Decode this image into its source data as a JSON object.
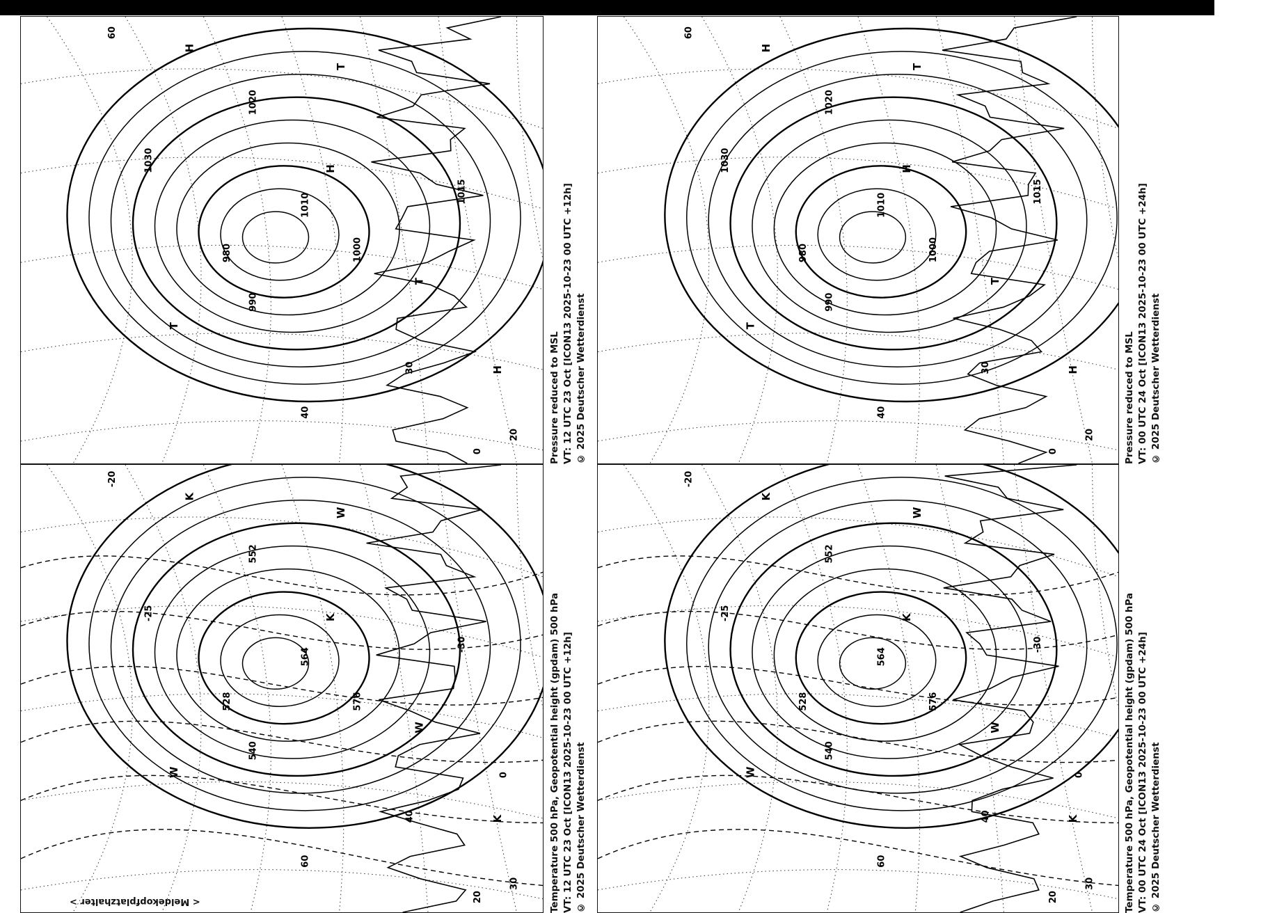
{
  "header_bar": {
    "color": "#000000"
  },
  "footer": {
    "text": "< Meldekopfplatzhalter >"
  },
  "panels": [
    {
      "id": "msl-12h",
      "caption": [
        "Pressure reduced to MSL",
        "VT: 12 UTC  23 Oct [ICON13 2025-10-23 00 UTC +12h]",
        "© 2025 Deutscher Wetterdienst"
      ],
      "labels": [
        "H",
        "T",
        "H",
        "T",
        "T",
        "H",
        "1020",
        "1010",
        "1000",
        "990",
        "980",
        "1030",
        "1015",
        "60",
        "40",
        "30",
        "20",
        "0"
      ]
    },
    {
      "id": "msl-24h",
      "caption": [
        "Pressure reduced to MSL",
        "VT: 00 UTC  24 Oct [ICON13 2025-10-23 00 UTC +24h]",
        "© 2025 Deutscher Wetterdienst"
      ],
      "labels": [
        "H",
        "T",
        "H",
        "T",
        "T",
        "H",
        "1020",
        "1010",
        "1000",
        "990",
        "980",
        "1030",
        "1015",
        "60",
        "40",
        "30",
        "20",
        "0"
      ]
    },
    {
      "id": "t500-12h",
      "caption": [
        "Temperature 500 hPa, Geopotential height (gpdam) 500 hPa",
        "VT: 12 UTC  23 Oct [ICON13 2025-10-23 00 UTC +12h]",
        "© 2025 Deutscher Wetterdienst"
      ],
      "labels": [
        "K",
        "W",
        "K",
        "W",
        "W",
        "K",
        "552",
        "564",
        "576",
        "540",
        "528",
        "-25",
        "-30",
        "-20",
        "60",
        "40",
        "30",
        "20",
        "0"
      ]
    },
    {
      "id": "t500-24h",
      "caption": [
        "Temperature 500 hPa, Geopotential height (gpdam) 500 hPa",
        "VT: 00 UTC  24 Oct [ICON13 2025-10-23 00 UTC +24h]",
        "© 2025 Deutscher Wetterdienst"
      ],
      "labels": [
        "K",
        "W",
        "K",
        "W",
        "W",
        "K",
        "552",
        "564",
        "576",
        "540",
        "528",
        "-25",
        "-30",
        "-20",
        "60",
        "40",
        "30",
        "20",
        "0"
      ]
    }
  ]
}
